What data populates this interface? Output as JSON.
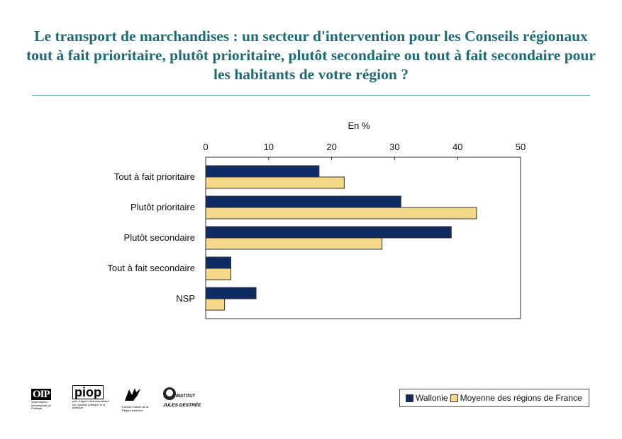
{
  "title": "Le transport de marchandises : un secteur d'intervention pour les Conseils régionaux tout à fait prioritaire, plutôt prioritaire, plutôt secondaire ou tout à fait secondaire pour les habitants de votre région ?",
  "chart_data": {
    "type": "bar",
    "orientation": "horizontal",
    "unit_label": "En %",
    "categories": [
      "Tout à fait prioritaire",
      "Plutôt prioritaire",
      "Plutôt secondaire",
      "Tout à fait secondaire",
      "NSP"
    ],
    "series": [
      {
        "name": "Wallonie",
        "color": "#0f2b63",
        "values": [
          18,
          31,
          39,
          4,
          8
        ]
      },
      {
        "name": "Moyenne des régions de France",
        "color": "#f5d98a",
        "values": [
          22,
          43,
          28,
          4,
          3
        ]
      }
    ],
    "xlim": [
      0,
      50
    ],
    "xticks": [
      0,
      10,
      20,
      30,
      40,
      50
    ],
    "grid": false,
    "legend_position": "bottom-right"
  },
  "logos": {
    "oip": {
      "mark": "OIP",
      "caption": "Observatoire Interrégional du Politique"
    },
    "piop": {
      "mark": "piop",
      "caption": "pôle d'appui interuniversitaire sur l'opinion publique et la politique"
    },
    "wallonie": {
      "caption": "Conseil culturel de la Région wallonne"
    },
    "institut": {
      "line1": "INSTITUT",
      "line2": "JULES DESTRÉE"
    }
  }
}
